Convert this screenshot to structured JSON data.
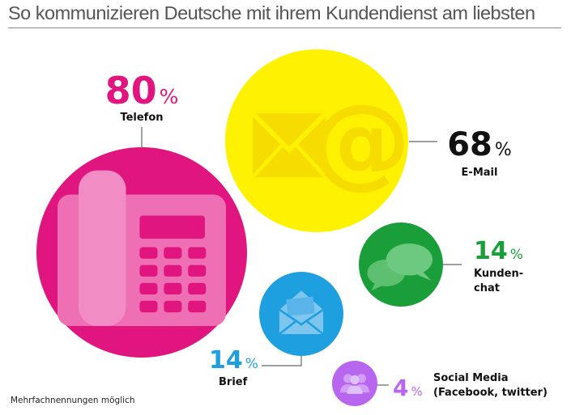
{
  "chart_data": {
    "type": "bubble",
    "title": "So kommunizieren Deutsche mit ihrem Kundendienst am liebsten",
    "unit": "%",
    "series": [
      {
        "label": "Telefon",
        "value": 80,
        "color": "#e0157f",
        "icon": "telephone-icon"
      },
      {
        "label": "E-Mail",
        "value": 68,
        "color": "#fff200",
        "icon": "email-at-icon"
      },
      {
        "label_lines": [
          "Kunden-",
          "chat"
        ],
        "value": 14,
        "color": "#1a9e3a",
        "icon": "chat-bubbles-icon"
      },
      {
        "label": "Brief",
        "value": 14,
        "color": "#1e9fe0",
        "icon": "letter-icon"
      },
      {
        "label_lines": [
          "Social Media",
          "(Facebook, twitter)"
        ],
        "value": 4,
        "color": "#b866ef",
        "icon": "people-icon"
      }
    ],
    "footnote": "Mehrfachnennungen möglich"
  }
}
